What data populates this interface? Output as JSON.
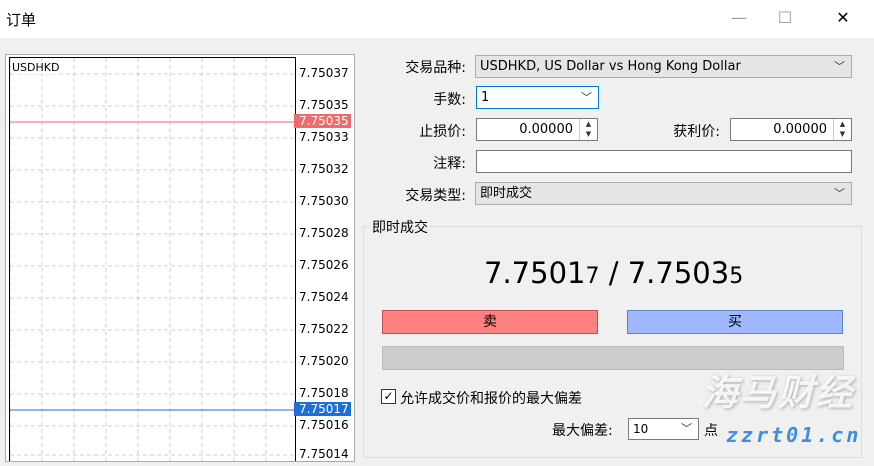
{
  "window": {
    "title": "订单",
    "minimize": "—",
    "maximize": "☐",
    "close": "✕"
  },
  "chart": {
    "symbol": "USDHKD",
    "y_labels": [
      "7.75037",
      "7.75035",
      "7.75033",
      "7.75032",
      "7.75030",
      "7.75028",
      "7.75026",
      "7.75024",
      "7.75022",
      "7.75020",
      "7.75018",
      "7.75016",
      "7.75014"
    ],
    "ask_price": "7.75035",
    "bid_price": "7.75017",
    "ask_color": "#f06a6a",
    "bid_color": "#1e6fd9"
  },
  "form": {
    "symbol_label": "交易品种:",
    "symbol_value": "USDHKD, US Dollar vs Hong Kong Dollar",
    "volume_label": "手数:",
    "volume_value": "1",
    "sl_label": "止损价:",
    "sl_value": "0.00000",
    "tp_label": "获利价:",
    "tp_value": "0.00000",
    "comment_label": "注释:",
    "comment_value": "",
    "type_label": "交易类型:",
    "type_value": "即时成交"
  },
  "execution": {
    "group_title": "即时成交",
    "bid_main": "7.7501",
    "bid_small": "7",
    "sep": " / ",
    "ask_main": "7.7503",
    "ask_small": "5",
    "sell_label": "卖",
    "buy_label": "买",
    "sell_color": "#ff8080",
    "buy_color": "#a0b8ff",
    "deviation_check_label": "允许成交价和报价的最大偏差",
    "deviation_checked": true,
    "max_dev_label": "最大偏差:",
    "max_dev_value": "10",
    "points_label": "点"
  },
  "watermark": {
    "line1": "海马财经",
    "line2": "zzrt01.cn"
  }
}
